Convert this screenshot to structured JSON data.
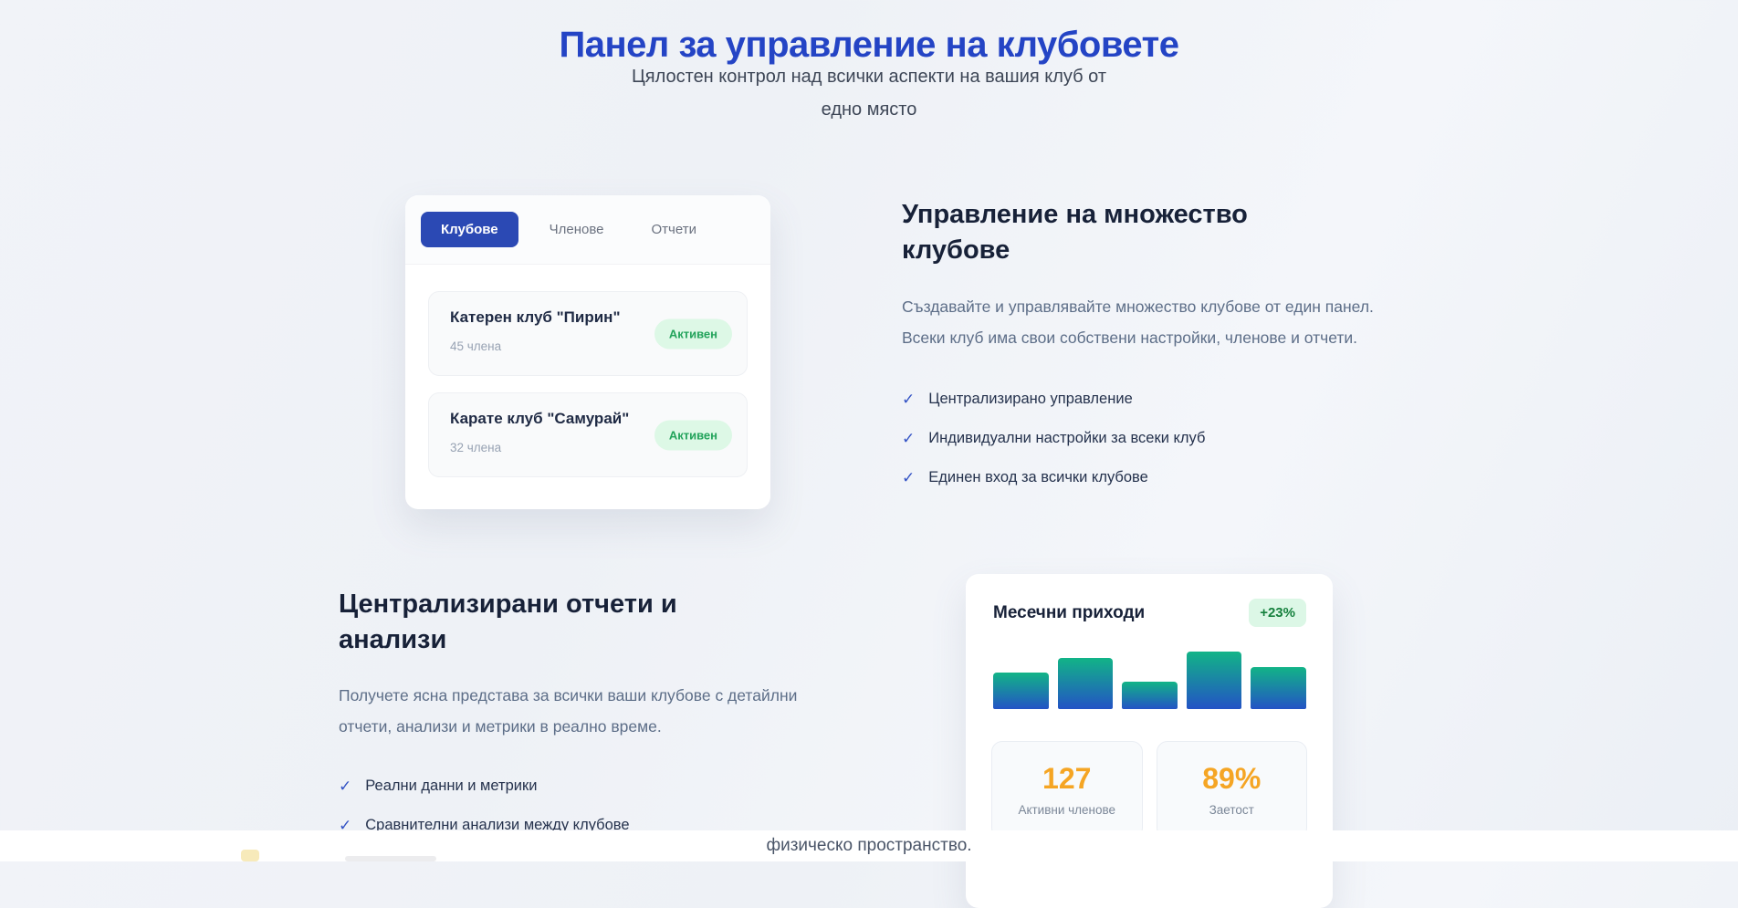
{
  "hero": {
    "title": "Панел за управление на клубовете",
    "subtitle_line1": "Цялостен контрол над всички аспекти на вашия клуб от",
    "subtitle_line2": "едно място"
  },
  "clubs_card": {
    "tabs": [
      {
        "label": "Клубове",
        "active": true
      },
      {
        "label": "Членове",
        "active": false
      },
      {
        "label": "Отчети",
        "active": false
      }
    ],
    "clubs": [
      {
        "name": "Катерен клуб \"Пирин\"",
        "members": "45 члена",
        "status": "Активен"
      },
      {
        "name": "Карате клуб \"Самурай\"",
        "members": "32 члена",
        "status": "Активен"
      }
    ]
  },
  "feature_multi_clubs": {
    "heading": "Управление на множество клубове",
    "description": "Създавайте и управлявайте множество клубове от един панел. Всеки клуб има свои собствени настройки, членове и отчети.",
    "checklist": [
      "Централизирано управление",
      "Индивидуални настройки за всеки клуб",
      "Единен вход за всички клубове"
    ]
  },
  "feature_reports": {
    "heading": "Централизирани отчети и анализи",
    "description": "Получете ясна представа за всички ваши клубове с детайлни отчети, анализи и метрики в реално време.",
    "checklist": [
      "Реални данни и метрики",
      "Сравнителни анализи между клубове"
    ]
  },
  "revenue_card": {
    "title": "Месечни приходи",
    "trend_badge": "+23%",
    "stats": [
      {
        "value": "127",
        "label": "Активни членове"
      },
      {
        "value": "89%",
        "label": "Заетост"
      }
    ]
  },
  "chart_data": {
    "type": "bar",
    "title": "Месечни приходи",
    "values": [
      63,
      89,
      48,
      100,
      73
    ],
    "unit": "relative-percent-of-max",
    "categories": [
      "",
      "",
      "",
      "",
      ""
    ],
    "axes_visible": false,
    "trend_label": "+23%",
    "bar_gradient": [
      "#12b487",
      "#2353c5"
    ]
  },
  "bottom_section": {
    "text": "физическо пространство."
  },
  "ui": {
    "check_icon": "✓"
  },
  "colors": {
    "accent_blue": "#2b49b4",
    "title_blue": "#2444c5",
    "badge_green_bg": "#ddf8e6",
    "badge_green_text": "#23a35b",
    "trend_green_text": "#15803d",
    "stat_orange": "#f5a524",
    "heading_navy": "#172138",
    "body_gray": "#5d6e88"
  }
}
